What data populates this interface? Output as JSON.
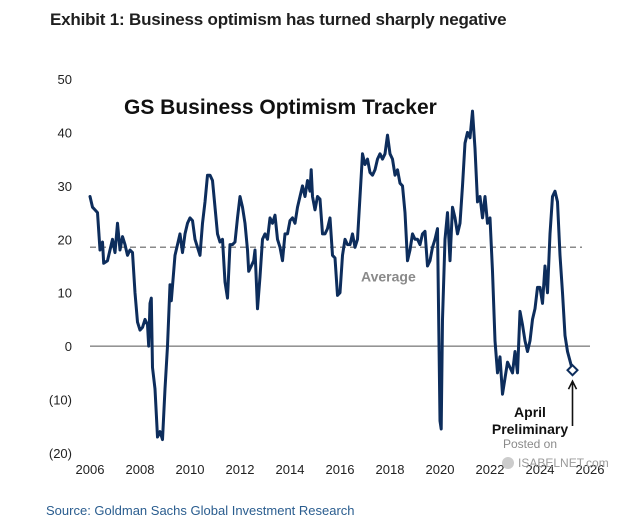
{
  "header": {
    "exhibit_title": "Exhibit 1: Business optimism has turned sharply negative"
  },
  "footer": {
    "source": "Source: Goldman Sachs Global Investment Research"
  },
  "watermark": {
    "posted_on": "Posted on",
    "site": "ISABELNET.com"
  },
  "chart_data": {
    "type": "line",
    "title": "GS Business Optimism Tracker",
    "xlabel": "",
    "ylabel": "",
    "xlim": [
      2006,
      2026
    ],
    "ylim": [
      -20,
      50
    ],
    "x_ticks": [
      "2006",
      "2008",
      "2010",
      "2012",
      "2014",
      "2016",
      "2018",
      "2020",
      "2022",
      "2024",
      "2026"
    ],
    "y_ticks": [
      "50",
      "40",
      "30",
      "20",
      "10",
      "0",
      "(10)",
      "(20)"
    ],
    "average": {
      "value": 18.5,
      "label": "Average"
    },
    "annotation": {
      "line1": "April",
      "line2": "Preliminary",
      "x": 2025.3,
      "y": -4.5
    },
    "colors": {
      "series": "#0d2d5c",
      "average": "#8a8a8a",
      "axis": "#555555"
    },
    "series": [
      {
        "name": "GS Business Optimism Tracker",
        "points": [
          [
            2006.0,
            28
          ],
          [
            2006.1,
            26
          ],
          [
            2006.2,
            25.5
          ],
          [
            2006.3,
            25
          ],
          [
            2006.4,
            18
          ],
          [
            2006.5,
            19.5
          ],
          [
            2006.55,
            15.5
          ],
          [
            2006.7,
            16
          ],
          [
            2006.8,
            18
          ],
          [
            2006.9,
            20
          ],
          [
            2007.0,
            17.5
          ],
          [
            2007.1,
            23
          ],
          [
            2007.2,
            18
          ],
          [
            2007.3,
            20.5
          ],
          [
            2007.4,
            19
          ],
          [
            2007.5,
            17
          ],
          [
            2007.6,
            18
          ],
          [
            2007.7,
            17.5
          ],
          [
            2007.8,
            10
          ],
          [
            2007.9,
            4.5
          ],
          [
            2008.0,
            3
          ],
          [
            2008.1,
            3.5
          ],
          [
            2008.2,
            5
          ],
          [
            2008.3,
            4
          ],
          [
            2008.35,
            0
          ],
          [
            2008.4,
            8
          ],
          [
            2008.45,
            9
          ],
          [
            2008.5,
            -4
          ],
          [
            2008.6,
            -8
          ],
          [
            2008.7,
            -17
          ],
          [
            2008.8,
            -16
          ],
          [
            2008.9,
            -17.5
          ],
          [
            2009.0,
            -8
          ],
          [
            2009.1,
            0
          ],
          [
            2009.2,
            11.5
          ],
          [
            2009.25,
            8.5
          ],
          [
            2009.4,
            17
          ],
          [
            2009.5,
            19
          ],
          [
            2009.6,
            21
          ],
          [
            2009.7,
            17.5
          ],
          [
            2009.8,
            21
          ],
          [
            2009.9,
            23
          ],
          [
            2010.0,
            24
          ],
          [
            2010.1,
            23.5
          ],
          [
            2010.2,
            20
          ],
          [
            2010.3,
            18.5
          ],
          [
            2010.4,
            17
          ],
          [
            2010.5,
            23
          ],
          [
            2010.6,
            27
          ],
          [
            2010.7,
            32
          ],
          [
            2010.8,
            32
          ],
          [
            2010.9,
            31
          ],
          [
            2011.0,
            26
          ],
          [
            2011.1,
            21
          ],
          [
            2011.2,
            19.5
          ],
          [
            2011.3,
            20
          ],
          [
            2011.4,
            12
          ],
          [
            2011.5,
            9
          ],
          [
            2011.6,
            19
          ],
          [
            2011.7,
            19
          ],
          [
            2011.8,
            19.5
          ],
          [
            2011.9,
            24
          ],
          [
            2012.0,
            28
          ],
          [
            2012.1,
            26
          ],
          [
            2012.2,
            23
          ],
          [
            2012.3,
            18
          ],
          [
            2012.35,
            14
          ],
          [
            2012.45,
            15
          ],
          [
            2012.55,
            16
          ],
          [
            2012.6,
            18
          ],
          [
            2012.7,
            7
          ],
          [
            2012.8,
            13
          ],
          [
            2012.9,
            20
          ],
          [
            2013.0,
            21
          ],
          [
            2013.1,
            20
          ],
          [
            2013.2,
            24
          ],
          [
            2013.3,
            23
          ],
          [
            2013.4,
            24.5
          ],
          [
            2013.5,
            20
          ],
          [
            2013.6,
            18.5
          ],
          [
            2013.7,
            16
          ],
          [
            2013.8,
            21
          ],
          [
            2013.9,
            21
          ],
          [
            2014.0,
            23.5
          ],
          [
            2014.1,
            24
          ],
          [
            2014.2,
            23
          ],
          [
            2014.3,
            26
          ],
          [
            2014.4,
            28
          ],
          [
            2014.5,
            30
          ],
          [
            2014.6,
            28
          ],
          [
            2014.7,
            31
          ],
          [
            2014.8,
            29
          ],
          [
            2014.85,
            33
          ],
          [
            2014.9,
            28
          ],
          [
            2015.0,
            25.5
          ],
          [
            2015.1,
            28
          ],
          [
            2015.2,
            27.5
          ],
          [
            2015.3,
            21
          ],
          [
            2015.4,
            21
          ],
          [
            2015.5,
            22
          ],
          [
            2015.6,
            24
          ],
          [
            2015.7,
            17
          ],
          [
            2015.8,
            16.5
          ],
          [
            2015.9,
            9.5
          ],
          [
            2016.0,
            10
          ],
          [
            2016.1,
            17
          ],
          [
            2016.2,
            20
          ],
          [
            2016.3,
            19
          ],
          [
            2016.4,
            19
          ],
          [
            2016.5,
            21
          ],
          [
            2016.6,
            18.5
          ],
          [
            2016.7,
            20
          ],
          [
            2016.9,
            36
          ],
          [
            2017.0,
            34
          ],
          [
            2017.1,
            35
          ],
          [
            2017.2,
            32.5
          ],
          [
            2017.3,
            32
          ],
          [
            2017.4,
            33
          ],
          [
            2017.5,
            35
          ],
          [
            2017.6,
            36
          ],
          [
            2017.7,
            35
          ],
          [
            2017.8,
            36
          ],
          [
            2017.9,
            39.5
          ],
          [
            2018.0,
            36
          ],
          [
            2018.1,
            35
          ],
          [
            2018.2,
            32
          ],
          [
            2018.3,
            33
          ],
          [
            2018.4,
            30.5
          ],
          [
            2018.5,
            30
          ],
          [
            2018.6,
            25
          ],
          [
            2018.7,
            16
          ],
          [
            2018.8,
            18
          ],
          [
            2018.9,
            21
          ],
          [
            2019.0,
            20
          ],
          [
            2019.1,
            20
          ],
          [
            2019.2,
            19
          ],
          [
            2019.3,
            21
          ],
          [
            2019.4,
            21.5
          ],
          [
            2019.5,
            15
          ],
          [
            2019.6,
            16
          ],
          [
            2019.7,
            18.5
          ],
          [
            2019.8,
            20
          ],
          [
            2019.9,
            22
          ],
          [
            2020.0,
            -14
          ],
          [
            2020.05,
            -15.5
          ],
          [
            2020.1,
            5
          ],
          [
            2020.2,
            20
          ],
          [
            2020.3,
            25
          ],
          [
            2020.4,
            16
          ],
          [
            2020.5,
            26
          ],
          [
            2020.6,
            24
          ],
          [
            2020.7,
            21
          ],
          [
            2020.8,
            23
          ],
          [
            2020.9,
            30
          ],
          [
            2021.0,
            38
          ],
          [
            2021.1,
            40
          ],
          [
            2021.2,
            39
          ],
          [
            2021.3,
            44
          ],
          [
            2021.4,
            37
          ],
          [
            2021.5,
            27
          ],
          [
            2021.6,
            28
          ],
          [
            2021.7,
            24
          ],
          [
            2021.8,
            28
          ],
          [
            2021.9,
            23
          ],
          [
            2022.0,
            24
          ],
          [
            2022.1,
            14
          ],
          [
            2022.2,
            1
          ],
          [
            2022.3,
            -5
          ],
          [
            2022.4,
            -2
          ],
          [
            2022.5,
            -9
          ],
          [
            2022.6,
            -6
          ],
          [
            2022.7,
            -3
          ],
          [
            2022.8,
            -4
          ],
          [
            2022.9,
            -5
          ],
          [
            2023.0,
            -1
          ],
          [
            2023.1,
            -5
          ],
          [
            2023.2,
            6.5
          ],
          [
            2023.3,
            4
          ],
          [
            2023.4,
            1
          ],
          [
            2023.5,
            -1
          ],
          [
            2023.6,
            1
          ],
          [
            2023.7,
            5
          ],
          [
            2023.8,
            7
          ],
          [
            2023.9,
            11
          ],
          [
            2024.0,
            11
          ],
          [
            2024.1,
            8
          ],
          [
            2024.2,
            15
          ],
          [
            2024.3,
            10
          ],
          [
            2024.4,
            21
          ],
          [
            2024.5,
            28
          ],
          [
            2024.6,
            29
          ],
          [
            2024.7,
            27
          ],
          [
            2024.8,
            17
          ],
          [
            2024.9,
            10
          ],
          [
            2025.0,
            2
          ],
          [
            2025.1,
            -1
          ],
          [
            2025.3,
            -4.5
          ]
        ]
      }
    ]
  }
}
